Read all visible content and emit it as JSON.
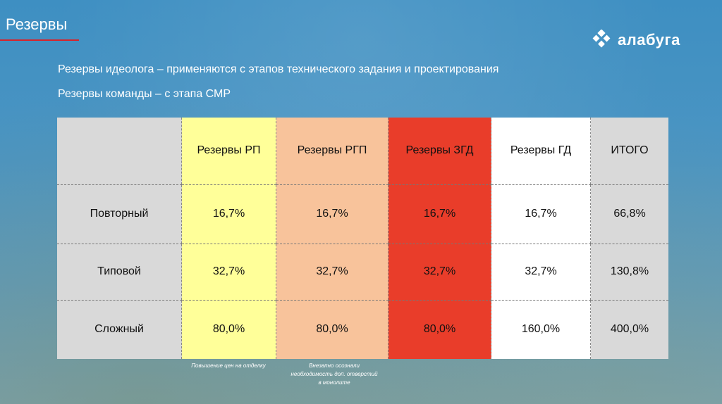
{
  "slide": {
    "title": "Резервы",
    "logo_text": "алабуга",
    "subtitle_1": "Резервы идеолога – применяются с этапов технического задания и проектирования",
    "subtitle_2": "Резервы команды – с этапа СМР"
  },
  "colors": {
    "title_rule": "#d8232a",
    "rp": "#ffff99",
    "rgp": "#f8c39b",
    "zgd": "#e93d2a",
    "gd": "#ffffff",
    "total": "#d9d9d9"
  },
  "table": {
    "headers": [
      "",
      "Резервы РП",
      "Резервы РГП",
      "Резервы ЗГД",
      "Резервы ГД",
      "ИТОГО"
    ],
    "rows": [
      [
        "Повторный",
        "16,7%",
        "16,7%",
        "16,7%",
        "16,7%",
        "66,8%"
      ],
      [
        "Типовой",
        "32,7%",
        "32,7%",
        "32,7%",
        "32,7%",
        "130,8%"
      ],
      [
        "Сложный",
        "80,0%",
        "80,0%",
        "80,0%",
        "160,0%",
        "400,0%"
      ]
    ]
  },
  "notes": {
    "rp": "Повышение цен на отделку",
    "rgp": "Внезапно осознали необходимость доп. отверстий в монолите"
  }
}
